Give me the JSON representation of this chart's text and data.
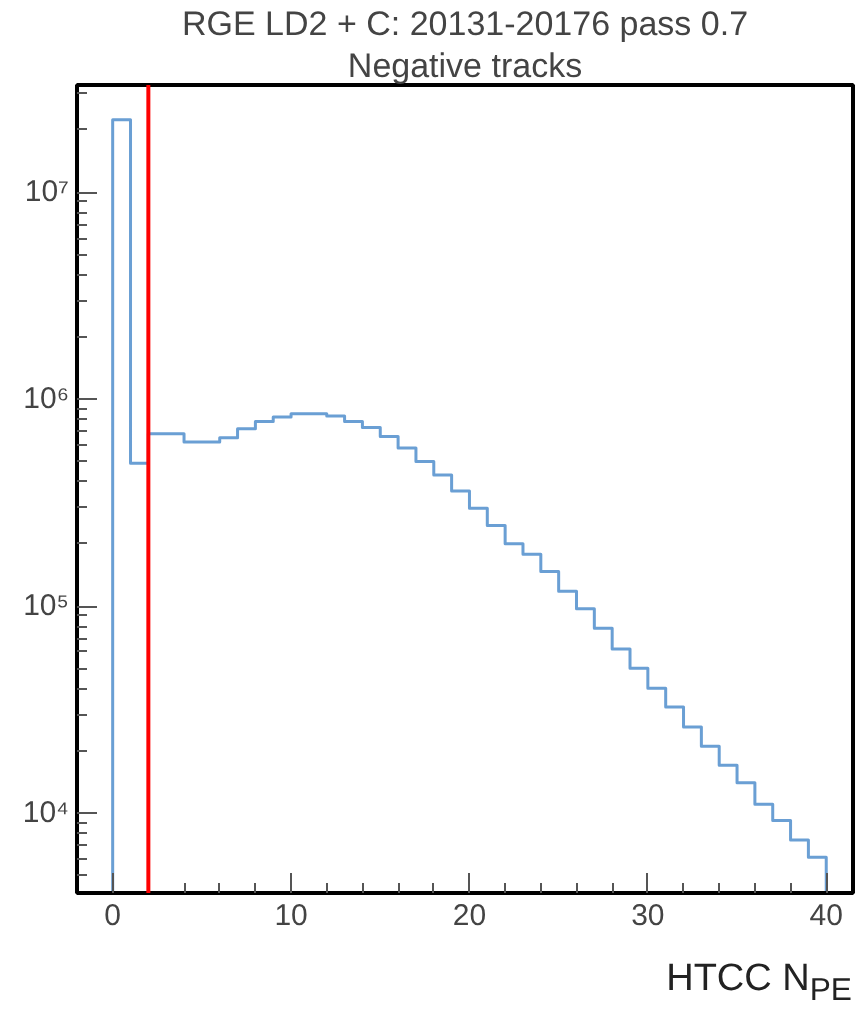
{
  "chart_data": {
    "type": "histogram",
    "title": "RGE LD2 + C: 20131-20176 pass 0.7",
    "subtitle": "Negative tracks",
    "xlabel": "HTCC N$_{PE}$",
    "bins": [
      0,
      1,
      2,
      3,
      4,
      5,
      6,
      7,
      8,
      9,
      10,
      11,
      12,
      13,
      14,
      15,
      16,
      17,
      18,
      19,
      20,
      21,
      22,
      23,
      24,
      25,
      26,
      27,
      28,
      29,
      30,
      31,
      32,
      33,
      34,
      35,
      36,
      37,
      38,
      39,
      40
    ],
    "values": [
      22400000,
      490000,
      680000,
      680000,
      620000,
      620000,
      650000,
      720000,
      780000,
      820000,
      850000,
      850000,
      830000,
      780000,
      730000,
      660000,
      580000,
      500000,
      430000,
      360000,
      297000,
      245000,
      200000,
      178000,
      147000,
      118000,
      97000,
      78000,
      62000,
      50000,
      40000,
      32500,
      26000,
      21000,
      17000,
      14000,
      11000,
      9200,
      7400,
      6100
    ],
    "color": "#6a9fd4",
    "log": "y",
    "grid": false,
    "xlim": [
      -2,
      41.5
    ],
    "ylim": [
      4100,
      33000000
    ],
    "xticks": [
      0,
      10,
      20,
      30,
      40
    ],
    "yticks": [
      {
        "value": 10000,
        "label": "10⁴"
      },
      {
        "value": 100000,
        "label": "10⁵"
      },
      {
        "value": 1000000,
        "label": "10⁶"
      },
      {
        "value": 10000000,
        "label": "10⁷"
      }
    ],
    "ref_lines": [
      {
        "axis": "x",
        "value": 2,
        "color": "#ff0000"
      }
    ]
  }
}
